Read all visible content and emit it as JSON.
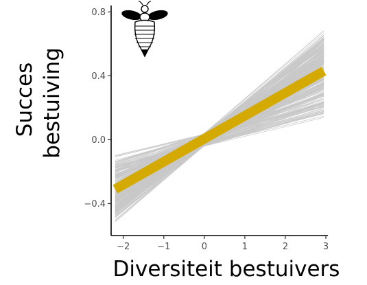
{
  "chart_data": {
    "type": "line",
    "xlabel": "Diversiteit bestuivers",
    "ylabel_lines": [
      "Succes",
      "bestuiving"
    ],
    "xlim": [
      -2.3,
      3.05
    ],
    "ylim": [
      -0.6,
      0.84
    ],
    "x_ticks": [
      -2,
      -1,
      0,
      1,
      2,
      3
    ],
    "x_tick_labels": [
      "−2",
      "−1",
      "0",
      "1",
      "2",
      "3"
    ],
    "y_ticks": [
      -0.4,
      0.0,
      0.4,
      0.8
    ],
    "y_tick_labels": [
      "−0.4",
      "0.0",
      "0.4",
      "0.8"
    ],
    "grid": false,
    "series": [
      {
        "role": "mean-fit",
        "x": [
          -2.2,
          2.95
        ],
        "y": [
          -0.31,
          0.43
        ],
        "color": "#d4aa00"
      },
      {
        "role": "posterior-draws",
        "color": "#c8c8c8",
        "intercept_center": 0.0,
        "slope_center": 0.143,
        "slope_range": [
          0.06,
          0.22
        ],
        "intercept_spread": 0.04
      }
    ],
    "icon": "bee-icon"
  }
}
